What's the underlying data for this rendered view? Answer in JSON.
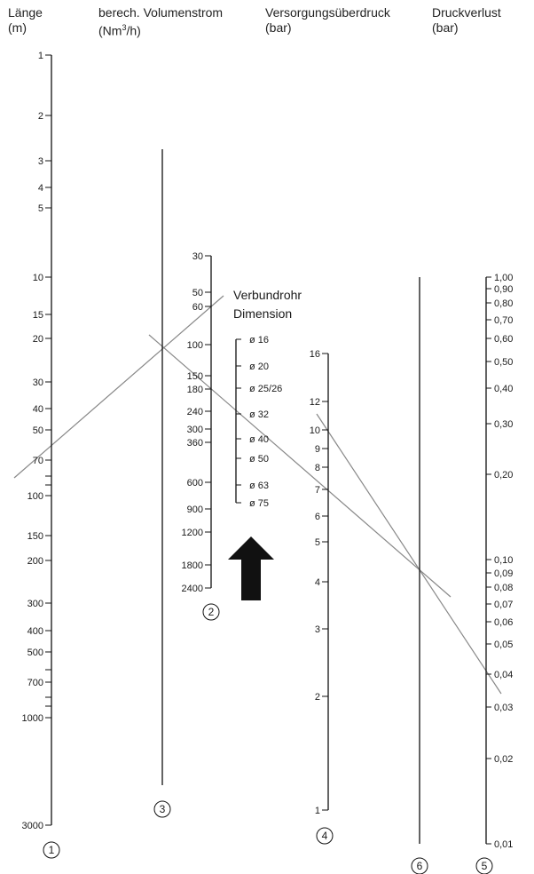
{
  "headers": [
    {
      "title": "Länge",
      "unit": "(m)"
    },
    {
      "title": "berech. Volumenstrom",
      "unit_prefix": "(Nm",
      "unit_sup": "3",
      "unit_suffix": "/h)"
    },
    {
      "title": "Versorgungsüberdruck",
      "unit": "(bar)"
    },
    {
      "title": "Druckverlust",
      "unit": "(bar)"
    }
  ],
  "scales": {
    "laenge": {
      "number": "1",
      "labels": [
        "1",
        "2",
        "3",
        "4",
        "5",
        "10",
        "15",
        "20",
        "30",
        "40",
        "50",
        "70",
        "100",
        "150",
        "200",
        "300",
        "400",
        "500",
        "700",
        "1000",
        "3000"
      ]
    },
    "volumenstrom": {
      "number": "2",
      "labels": [
        "30",
        "50",
        "60",
        "100",
        "150",
        "180",
        "240",
        "300",
        "360",
        "600",
        "900",
        "1200",
        "1800",
        "2400"
      ]
    },
    "reference_line": {
      "number": "3"
    },
    "ueberdruck": {
      "number": "4",
      "labels": [
        "16",
        "12",
        "10",
        "9",
        "8",
        "7",
        "6",
        "5",
        "4",
        "3",
        "2",
        "1"
      ]
    },
    "druckverlust": {
      "number": "5",
      "labels": [
        "1,00",
        "0,90",
        "0,80",
        "0,70",
        "0,60",
        "0,50",
        "0,40",
        "0,30",
        "0,20",
        "0,10",
        "0,09",
        "0,08",
        "0,07",
        "0,06",
        "0,05",
        "0,04",
        "0,03",
        "0,02",
        "0,01"
      ]
    },
    "reference_line_2": {
      "number": "6"
    }
  },
  "verbundrohr": {
    "title_line1": "Verbundrohr",
    "title_line2": "Dimension",
    "sizes": [
      "ø 16",
      "ø 20",
      "ø 25/26",
      "ø 32",
      "ø 40",
      "ø 50",
      "ø 63",
      "ø 75"
    ]
  },
  "arrow": {
    "direction": "up",
    "icon": "up-arrow-icon",
    "color": "#111111"
  },
  "colors": {
    "axis": "#111111",
    "example_line": "#888888",
    "text": "#1a1a1a"
  }
}
